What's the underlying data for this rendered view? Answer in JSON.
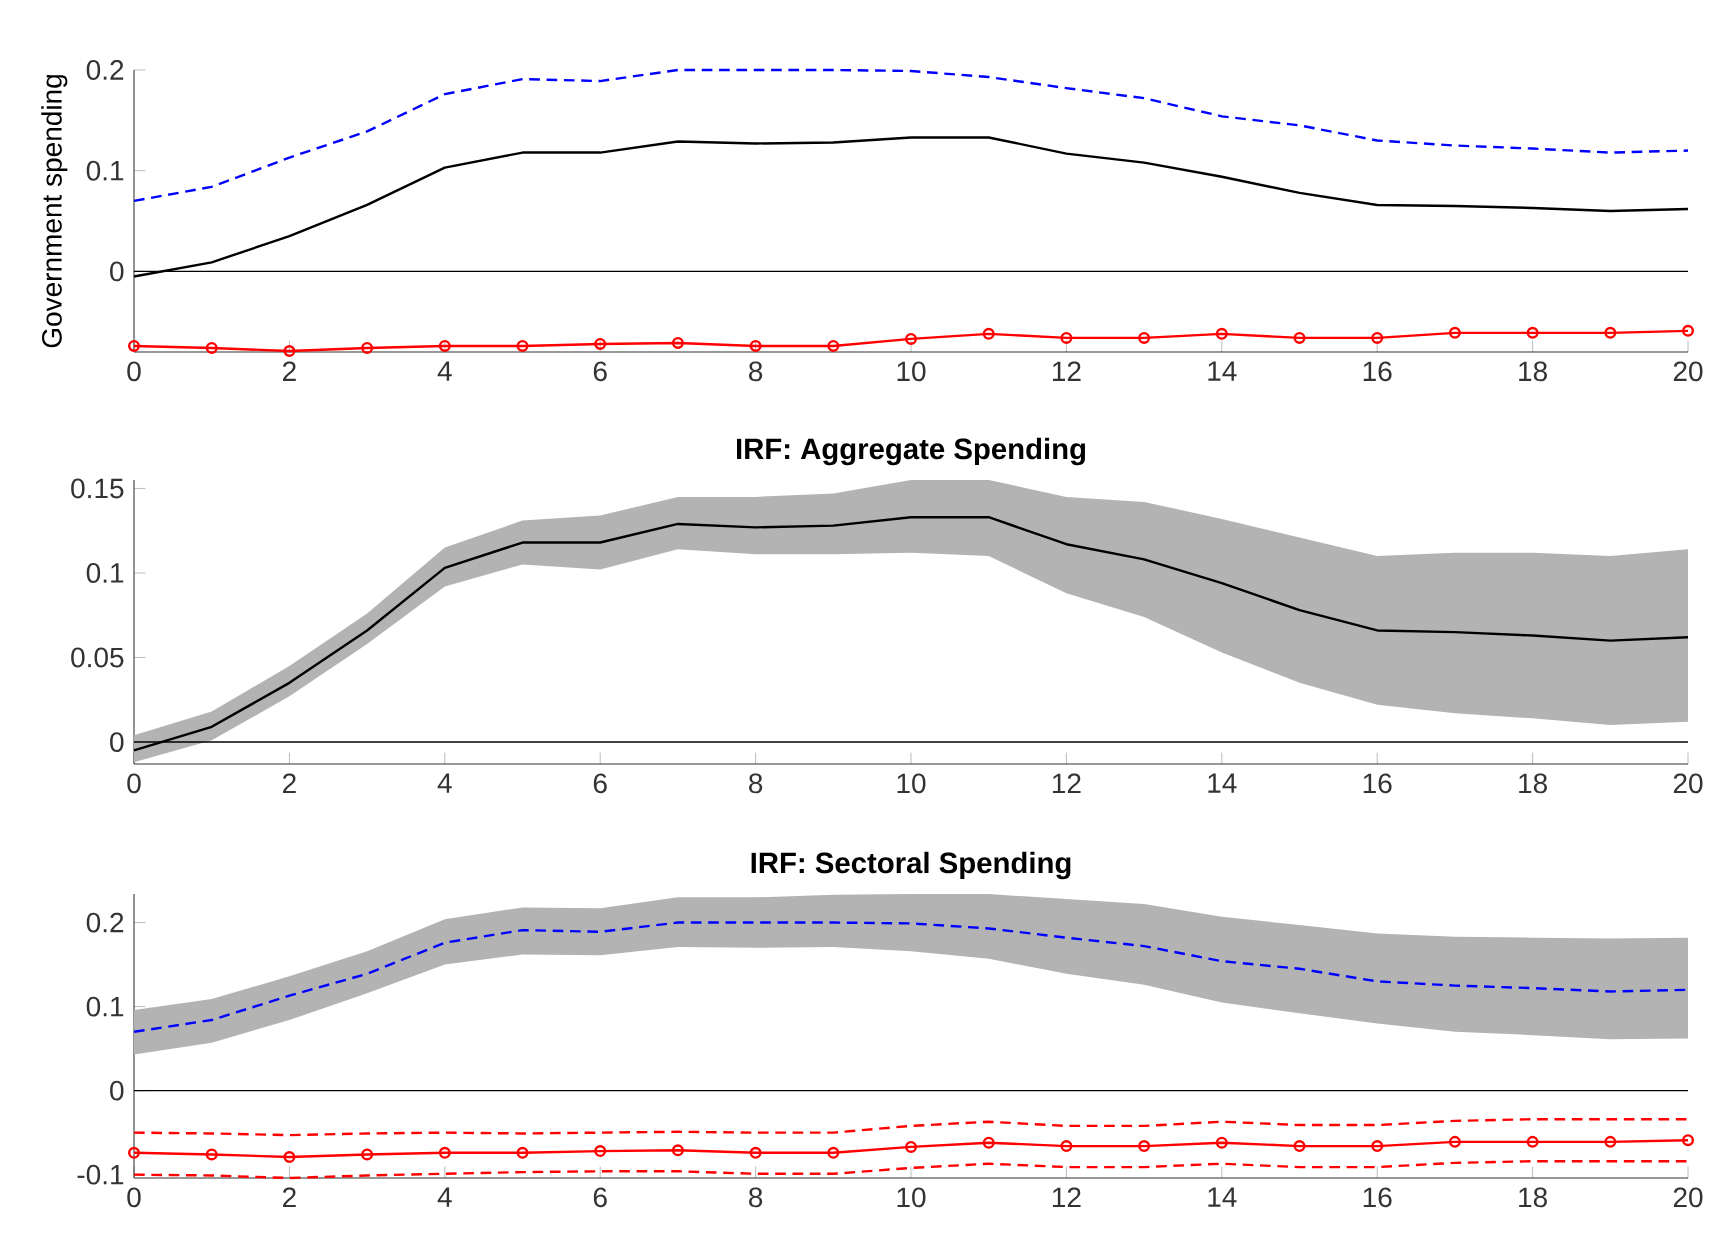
{
  "chart_data": [
    {
      "type": "line",
      "ylabel": "Government spending",
      "x": [
        0,
        1,
        2,
        3,
        4,
        5,
        6,
        7,
        8,
        9,
        10,
        11,
        12,
        13,
        14,
        15,
        16,
        17,
        18,
        19,
        20
      ],
      "xlim": [
        0,
        20
      ],
      "xticks": [
        0,
        2,
        4,
        6,
        8,
        10,
        12,
        14,
        16,
        18,
        20
      ],
      "ylim": [
        -0.08,
        0.2
      ],
      "yticks": [
        0,
        0.1,
        0.2
      ],
      "ref_lines": [
        {
          "axis": "y",
          "value": 0,
          "color": "#000000"
        }
      ],
      "series": [
        {
          "color": "#000000",
          "line_style": "solid",
          "marker": "none",
          "values": [
            -0.005,
            0.009,
            0.035,
            0.066,
            0.103,
            0.118,
            0.118,
            0.129,
            0.127,
            0.128,
            0.133,
            0.133,
            0.117,
            0.108,
            0.094,
            0.078,
            0.066,
            0.065,
            0.063,
            0.06,
            0.062
          ]
        },
        {
          "color": "#0000ff",
          "line_style": "dashed",
          "marker": "none",
          "values": [
            0.07,
            0.084,
            0.113,
            0.139,
            0.176,
            0.191,
            0.189,
            0.2,
            0.2,
            0.2,
            0.199,
            0.193,
            0.182,
            0.172,
            0.154,
            0.145,
            0.13,
            0.125,
            0.122,
            0.118,
            0.12
          ]
        },
        {
          "color": "#ff0000",
          "line_style": "solid",
          "marker": "circle",
          "values": [
            -0.074,
            -0.076,
            -0.079,
            -0.076,
            -0.074,
            -0.074,
            -0.072,
            -0.071,
            -0.074,
            -0.074,
            -0.067,
            -0.062,
            -0.066,
            -0.066,
            -0.062,
            -0.066,
            -0.066,
            -0.061,
            -0.061,
            -0.061,
            -0.059
          ]
        }
      ]
    },
    {
      "type": "line",
      "title": "IRF: Aggregate Spending",
      "x": [
        0,
        1,
        2,
        3,
        4,
        5,
        6,
        7,
        8,
        9,
        10,
        11,
        12,
        13,
        14,
        15,
        16,
        17,
        18,
        19,
        20
      ],
      "xlim": [
        0,
        20
      ],
      "xticks": [
        0,
        2,
        4,
        6,
        8,
        10,
        12,
        14,
        16,
        18,
        20
      ],
      "ylim": [
        -0.013,
        0.155
      ],
      "yticks": [
        0,
        0.05,
        0.1,
        0.15
      ],
      "ref_lines": [
        {
          "axis": "y",
          "value": 0,
          "color": "#000000"
        }
      ],
      "series": [
        {
          "color": "#000000",
          "line_style": "solid",
          "marker": "none",
          "values": [
            -0.005,
            0.009,
            0.035,
            0.066,
            0.103,
            0.118,
            0.118,
            0.129,
            0.127,
            0.128,
            0.133,
            0.133,
            0.117,
            0.108,
            0.094,
            0.078,
            0.066,
            0.065,
            0.063,
            0.06,
            0.062
          ],
          "lower": [
            -0.012,
            0.001,
            0.027,
            0.058,
            0.092,
            0.105,
            0.102,
            0.114,
            0.111,
            0.111,
            0.112,
            0.11,
            0.088,
            0.074,
            0.053,
            0.035,
            0.022,
            0.017,
            0.014,
            0.01,
            0.012
          ],
          "upper": [
            0.004,
            0.018,
            0.045,
            0.076,
            0.115,
            0.131,
            0.134,
            0.145,
            0.145,
            0.147,
            0.155,
            0.155,
            0.145,
            0.142,
            0.132,
            0.121,
            0.11,
            0.112,
            0.112,
            0.11,
            0.114
          ]
        }
      ]
    },
    {
      "type": "line",
      "title": "IRF: Sectoral Spending",
      "x": [
        0,
        1,
        2,
        3,
        4,
        5,
        6,
        7,
        8,
        9,
        10,
        11,
        12,
        13,
        14,
        15,
        16,
        17,
        18,
        19,
        20
      ],
      "xlim": [
        0,
        20
      ],
      "xticks": [
        0,
        2,
        4,
        6,
        8,
        10,
        12,
        14,
        16,
        18,
        20
      ],
      "ylim": [
        -0.104,
        0.234
      ],
      "yticks": [
        -0.1,
        0,
        0.1,
        0.2
      ],
      "ref_lines": [
        {
          "axis": "y",
          "value": 0,
          "color": "#000000"
        }
      ],
      "series": [
        {
          "color": "#0000ff",
          "line_style": "dashed",
          "marker": "none",
          "values": [
            0.07,
            0.084,
            0.113,
            0.139,
            0.176,
            0.191,
            0.189,
            0.2,
            0.2,
            0.2,
            0.199,
            0.193,
            0.182,
            0.172,
            0.154,
            0.145,
            0.13,
            0.125,
            0.122,
            0.118,
            0.12
          ],
          "lower": [
            0.043,
            0.057,
            0.084,
            0.116,
            0.15,
            0.162,
            0.161,
            0.171,
            0.17,
            0.171,
            0.166,
            0.157,
            0.139,
            0.126,
            0.105,
            0.092,
            0.08,
            0.07,
            0.066,
            0.061,
            0.062
          ],
          "upper": [
            0.096,
            0.109,
            0.136,
            0.166,
            0.204,
            0.218,
            0.217,
            0.23,
            0.23,
            0.233,
            0.234,
            0.234,
            0.228,
            0.222,
            0.207,
            0.197,
            0.187,
            0.183,
            0.182,
            0.181,
            0.182
          ]
        },
        {
          "color": "#ff0000",
          "line_style": "solid",
          "marker": "circle",
          "values": [
            -0.074,
            -0.076,
            -0.079,
            -0.076,
            -0.074,
            -0.074,
            -0.072,
            -0.071,
            -0.074,
            -0.074,
            -0.067,
            -0.062,
            -0.066,
            -0.066,
            -0.062,
            -0.066,
            -0.066,
            -0.061,
            -0.061,
            -0.061,
            -0.059
          ]
        },
        {
          "color": "#ff0000",
          "line_style": "dashed",
          "marker": "none",
          "values": [
            -0.05,
            -0.051,
            -0.053,
            -0.051,
            -0.05,
            -0.051,
            -0.05,
            -0.049,
            -0.05,
            -0.05,
            -0.042,
            -0.037,
            -0.042,
            -0.042,
            -0.037,
            -0.041,
            -0.041,
            -0.036,
            -0.034,
            -0.034,
            -0.034
          ]
        },
        {
          "color": "#ff0000",
          "line_style": "dashed",
          "marker": "none",
          "values": [
            -0.1,
            -0.101,
            -0.104,
            -0.101,
            -0.099,
            -0.097,
            -0.096,
            -0.096,
            -0.099,
            -0.099,
            -0.092,
            -0.087,
            -0.091,
            -0.091,
            -0.087,
            -0.091,
            -0.091,
            -0.086,
            -0.084,
            -0.084,
            -0.084
          ]
        }
      ]
    }
  ]
}
